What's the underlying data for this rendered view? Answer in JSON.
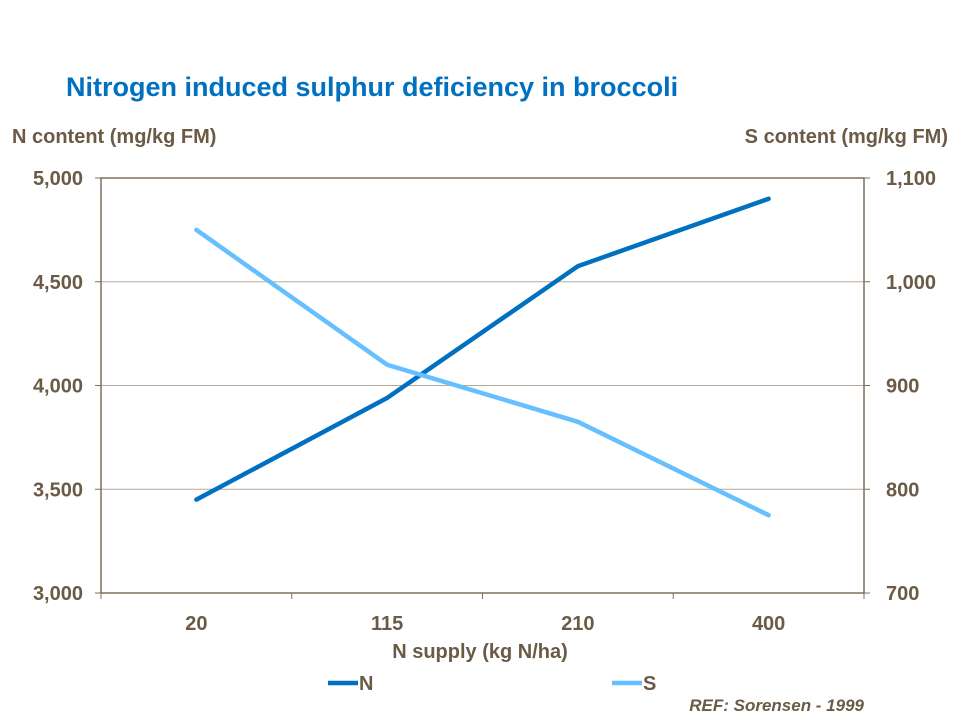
{
  "chart_data": {
    "type": "line",
    "title": "Nitrogen induced sulphur deficiency in broccoli",
    "xlabel": "N supply (kg N/ha)",
    "ylabel_left": "N content (mg/kg FM)",
    "ylabel_right": "S content (mg/kg FM)",
    "categories": [
      "20",
      "115",
      "210",
      "400"
    ],
    "y_left": {
      "range": [
        3000,
        5000
      ],
      "ticks": [
        "3,000",
        "3,500",
        "4,000",
        "4,500",
        "5,000"
      ]
    },
    "y_right": {
      "range": [
        700,
        1100
      ],
      "ticks": [
        "700",
        "800",
        "900",
        "1,000",
        "1,100"
      ]
    },
    "series": [
      {
        "name": "N",
        "axis": "left",
        "color": "#0070C0",
        "values": [
          3450,
          3940,
          4575,
          4900
        ]
      },
      {
        "name": "S",
        "axis": "right",
        "color": "#66BFFF",
        "values": [
          1050,
          920,
          865,
          775
        ]
      }
    ],
    "grid": true,
    "legend": "bottom",
    "note": "REF: Sorensen - 1999"
  }
}
